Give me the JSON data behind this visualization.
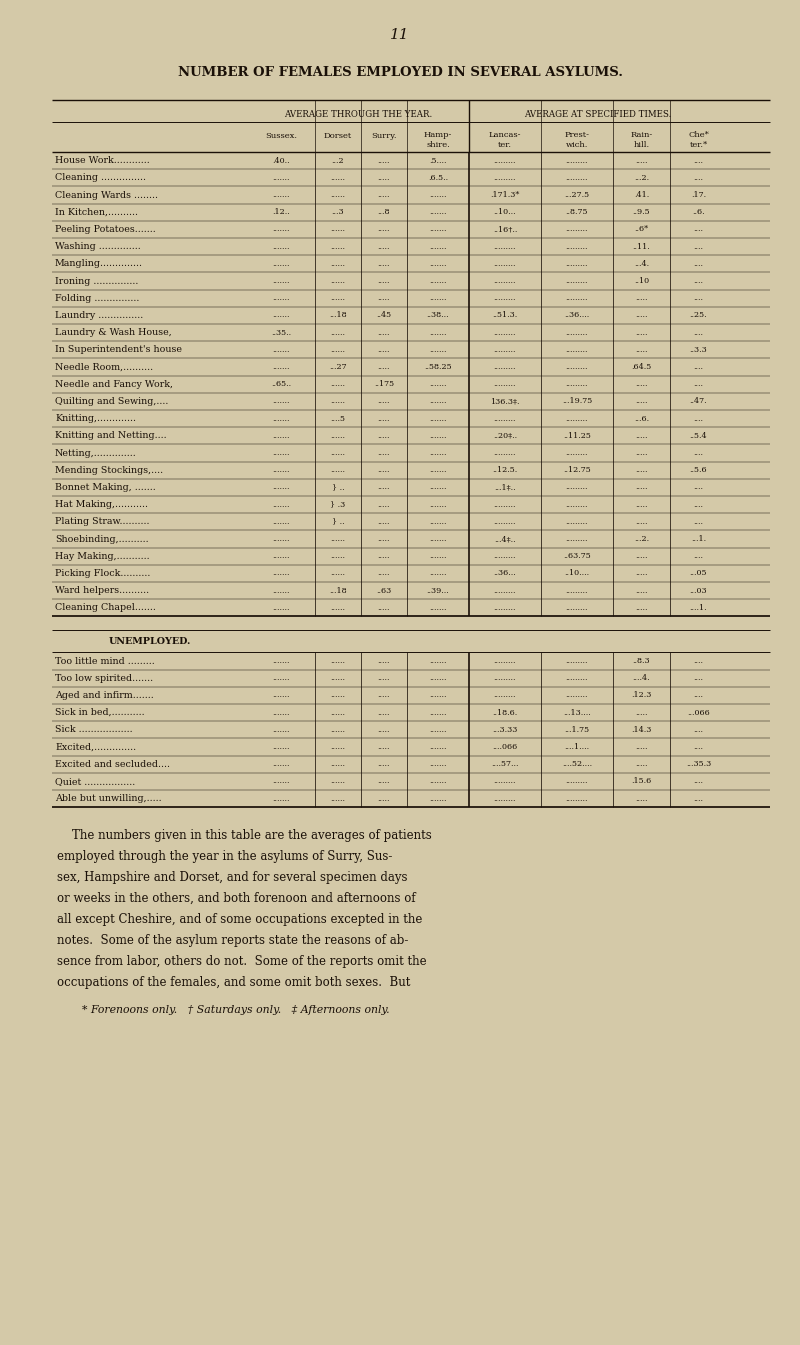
{
  "page_number": "11",
  "title": "NUMBER OF FEMALES EMPLOYED IN SEVERAL ASYLUMS.",
  "bg_color": "#d4c9a8",
  "text_color": "#1a1008",
  "header_group1": "AVERAGE THROUGH THE YEAR.",
  "header_group2": "AVERAGE AT SPECIFIED TIMES.",
  "col_headers_line1": [
    "Sussex.",
    "Dorset",
    "Surry.",
    "Hamp-",
    "Lancas-",
    "Prest-",
    "Rain-",
    "Che*"
  ],
  "col_headers_line2": [
    "",
    "",
    "",
    "shire.",
    "ter.",
    "wich.",
    "hill.",
    "ter.*"
  ],
  "main_rows": [
    [
      "House Work............",
      ".40..",
      "...2",
      ".....",
      ".5....",
      ".........",
      ".........",
      ".....",
      "...."
    ],
    [
      "Cleaning ...............",
      ".......",
      "......",
      ".....",
      ".6.5..",
      ".........",
      ".........",
      "...2.",
      "...."
    ],
    [
      "Cleaning Wards ........",
      ".......",
      "......",
      ".....",
      ".......",
      ".171.3*",
      "...27.5",
      ".41.",
      ".17."
    ],
    [
      "In Kitchen,..........",
      ".12..",
      "...3",
      "...8",
      ".......",
      "..10...",
      "..8.75",
      "..9.5",
      "..6."
    ],
    [
      "Peeling Potatoes.......",
      ".......",
      "......",
      ".....",
      ".......",
      "..16†..",
      ".........",
      "..6*",
      "...."
    ],
    [
      "Washing ..............",
      ".......",
      "......",
      ".....",
      ".......",
      ".........",
      ".........",
      "..11.",
      "...."
    ],
    [
      "Mangling..............",
      ".......",
      "......",
      ".....",
      ".......",
      ".........",
      ".........",
      "...4.",
      "...."
    ],
    [
      "Ironing ...............",
      ".......",
      "......",
      ".....",
      ".......",
      ".........",
      ".........",
      "..10",
      "...."
    ],
    [
      "Folding ...............",
      ".......",
      "......",
      ".....",
      ".......",
      ".........",
      ".........",
      ".....",
      "...."
    ],
    [
      "Laundry ...............",
      ".......",
      "...18",
      "..45",
      "..38...",
      "..51.3.",
      "..36....",
      ".....",
      "..25."
    ],
    [
      "Laundry & Wash House,",
      "..35..",
      "......",
      ".....",
      ".......",
      ".........",
      ".........",
      ".....",
      "...."
    ],
    [
      "In Superintendent's house",
      ".......",
      "......",
      ".....",
      ".......",
      ".........",
      ".........",
      ".....",
      "..3.3"
    ],
    [
      "Needle Room,..........",
      ".......",
      "...27",
      ".....",
      "..58.25",
      ".........",
      ".........",
      ".64.5",
      "...."
    ],
    [
      "Needle and Fancy Work,",
      "..65..",
      "......",
      "..175",
      ".......",
      ".........",
      ".........",
      ".....",
      "...."
    ],
    [
      "Quilting and Sewing,....",
      ".......",
      "......",
      ".....",
      ".......",
      "136.3‡.",
      "...19.75",
      ".....",
      "..47."
    ],
    [
      "Knitting,.............",
      ".......",
      "....5",
      ".....",
      ".......",
      ".........",
      ".........",
      "...6.",
      "...."
    ],
    [
      "Knitting and Netting....",
      ".......",
      "......",
      ".....",
      ".......",
      "..20‡..",
      "..11.25",
      ".....",
      "..5.4"
    ],
    [
      "Netting,..............",
      ".......",
      "......",
      ".....",
      ".......",
      ".........",
      ".........",
      ".....",
      "...."
    ],
    [
      "Mending Stockings,....",
      ".......",
      "......",
      ".....",
      ".......",
      "..12.5.",
      "..12.75",
      ".....",
      "..5.6"
    ],
    [
      "Bonnet Making, .......",
      ".......",
      "} ..",
      ".....",
      ".......",
      "...1‡..",
      ".........",
      ".....",
      "...."
    ],
    [
      "Hat Making,...........",
      ".......",
      "} .3",
      ".....",
      ".......",
      ".........",
      ".........",
      ".....",
      "...."
    ],
    [
      "Plating Straw..........",
      ".......",
      "} ..",
      ".....",
      ".......",
      ".........",
      ".........",
      ".....",
      "...."
    ],
    [
      "Shoebinding,..........",
      ".......",
      "......",
      ".....",
      ".......",
      "...4‡..",
      ".........",
      "...2.",
      "...1."
    ],
    [
      "Hay Making,...........",
      ".......",
      "......",
      ".....",
      ".......",
      ".........",
      "..63.75",
      ".....",
      "...."
    ],
    [
      "Picking Flock..........",
      ".......",
      "......",
      ".....",
      ".......",
      "..36...",
      "..10....",
      ".....",
      "...05"
    ],
    [
      "Ward helpers..........",
      ".......",
      "...18",
      "..63",
      "..39...",
      ".........",
      ".........",
      ".....",
      "...03"
    ],
    [
      "Cleaning Chapel.......",
      ".......",
      "......",
      ".....",
      ".......",
      ".........",
      ".........",
      ".....",
      "....1."
    ]
  ],
  "unemployed_rows": [
    [
      "Too little mind .........",
      ".......",
      "......",
      ".....",
      ".......",
      ".........",
      ".........",
      "..8.3",
      "...."
    ],
    [
      "Too low spirited.......",
      ".......",
      "......",
      ".....",
      ".......",
      ".........",
      ".........",
      "....4.",
      "...."
    ],
    [
      "Aged and infirm.......",
      ".......",
      "......",
      ".....",
      ".......",
      ".........",
      ".........",
      ".12.3",
      "...."
    ],
    [
      "Sick in bed,...........",
      ".......",
      "......",
      ".....",
      ".......",
      "..18.6.",
      "...13....",
      ".....",
      "...066"
    ],
    [
      "Sick ..................",
      ".......",
      "......",
      ".....",
      ".......",
      "...3.33",
      "...1.75",
      ".14.3",
      "...."
    ],
    [
      "Excited,..............",
      ".......",
      "......",
      ".....",
      ".......",
      "....066",
      "....1....",
      ".....",
      "...."
    ],
    [
      "Excited and secluded....",
      ".......",
      "......",
      ".....",
      ".......",
      "....57...",
      "....52....",
      ".....",
      "...35.3"
    ],
    [
      "Quiet .................",
      ".......",
      "......",
      ".....",
      ".......",
      ".........",
      ".........",
      ".15.6",
      "...."
    ],
    [
      "Able but unwilling,.....",
      ".......",
      "......",
      ".....",
      ".......",
      ".........",
      ".........",
      ".....",
      "...."
    ]
  ],
  "footer_lines": [
    "    The numbers given in this table are the averages of patients",
    "employed through the year in the asylums of Surry, Sus-",
    "sex, Hampshire and Dorset, and for several specimen days",
    "or weeks in the others, and both forenoon and afternoons of",
    "all except Cheshire, and of some occupations excepted in the",
    "notes.  Some of the asylum reports state the reasons of ab-",
    "sence from labor, others do not.  Some of the reports omit the",
    "occupations of the females, and some omit both sexes.  But"
  ],
  "footnote": "* Forenoons only.   † Saturdays only.   ‡ Afternoons only."
}
